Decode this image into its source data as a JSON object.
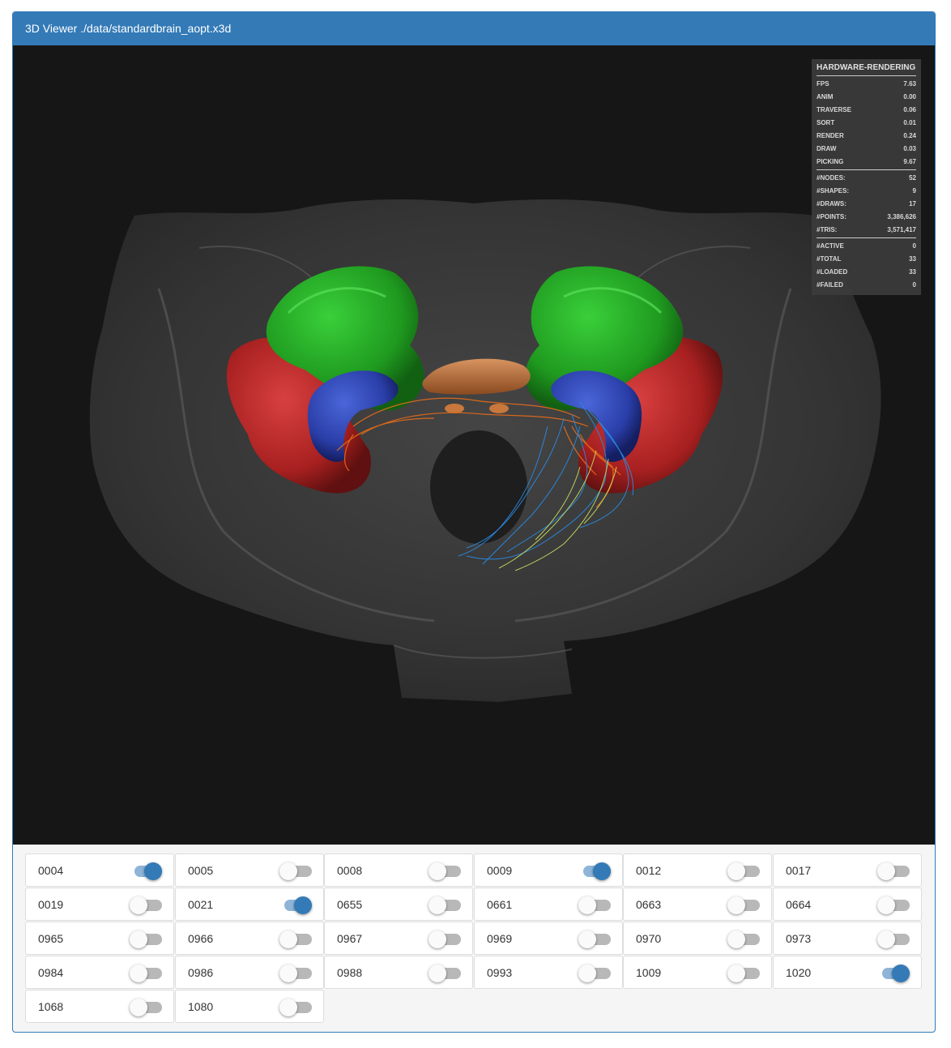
{
  "window": {
    "title": "3D Viewer ./data/standardbrain_aopt.x3d"
  },
  "stats": {
    "title": "HARDWARE-RENDERING",
    "timing": [
      {
        "label": "FPS",
        "value": "7.63"
      },
      {
        "label": "ANIM",
        "value": "0.00"
      },
      {
        "label": "TRAVERSE",
        "value": "0.06"
      },
      {
        "label": "SORT",
        "value": "0.01"
      },
      {
        "label": "RENDER",
        "value": "0.24"
      },
      {
        "label": "DRAW",
        "value": "0.03"
      },
      {
        "label": "PICKING",
        "value": "9.67"
      }
    ],
    "counts": [
      {
        "label": "#NODES:",
        "value": "52"
      },
      {
        "label": "#SHAPES:",
        "value": "9"
      },
      {
        "label": "#DRAWS:",
        "value": "17"
      },
      {
        "label": "#POINTS:",
        "value": "3,386,626"
      },
      {
        "label": "#TRIS:",
        "value": "3,571,417"
      }
    ],
    "loading": [
      {
        "label": "#ACTIVE",
        "value": "0"
      },
      {
        "label": "#TOTAL",
        "value": "33"
      },
      {
        "label": "#LOADED",
        "value": "33"
      },
      {
        "label": "#FAILED",
        "value": "0"
      }
    ]
  },
  "neurons": [
    {
      "id": "0004",
      "on": true
    },
    {
      "id": "0005",
      "on": false
    },
    {
      "id": "0008",
      "on": false
    },
    {
      "id": "0009",
      "on": true
    },
    {
      "id": "0012",
      "on": false
    },
    {
      "id": "0017",
      "on": false
    },
    {
      "id": "0019",
      "on": false
    },
    {
      "id": "0021",
      "on": true
    },
    {
      "id": "0655",
      "on": false
    },
    {
      "id": "0661",
      "on": false
    },
    {
      "id": "0663",
      "on": false
    },
    {
      "id": "0664",
      "on": false
    },
    {
      "id": "0965",
      "on": false
    },
    {
      "id": "0966",
      "on": false
    },
    {
      "id": "0967",
      "on": false
    },
    {
      "id": "0969",
      "on": false
    },
    {
      "id": "0970",
      "on": false
    },
    {
      "id": "0973",
      "on": false
    },
    {
      "id": "0984",
      "on": false
    },
    {
      "id": "0986",
      "on": false
    },
    {
      "id": "0988",
      "on": false
    },
    {
      "id": "0993",
      "on": false
    },
    {
      "id": "1009",
      "on": false
    },
    {
      "id": "1020",
      "on": true
    },
    {
      "id": "1068",
      "on": false
    },
    {
      "id": "1080",
      "on": false
    }
  ],
  "colors": {
    "accent": "#337ab7",
    "scene_bg": "#161616",
    "brain_shell": "#5a5a5a",
    "region_green": "#22a022",
    "region_red": "#b82828",
    "region_blue": "#2a46b0",
    "region_orange": "#c8783c",
    "neuron_orange": "#e06a1a",
    "neuron_blue": "#2a88e0",
    "neuron_yellow": "#c8e060"
  }
}
